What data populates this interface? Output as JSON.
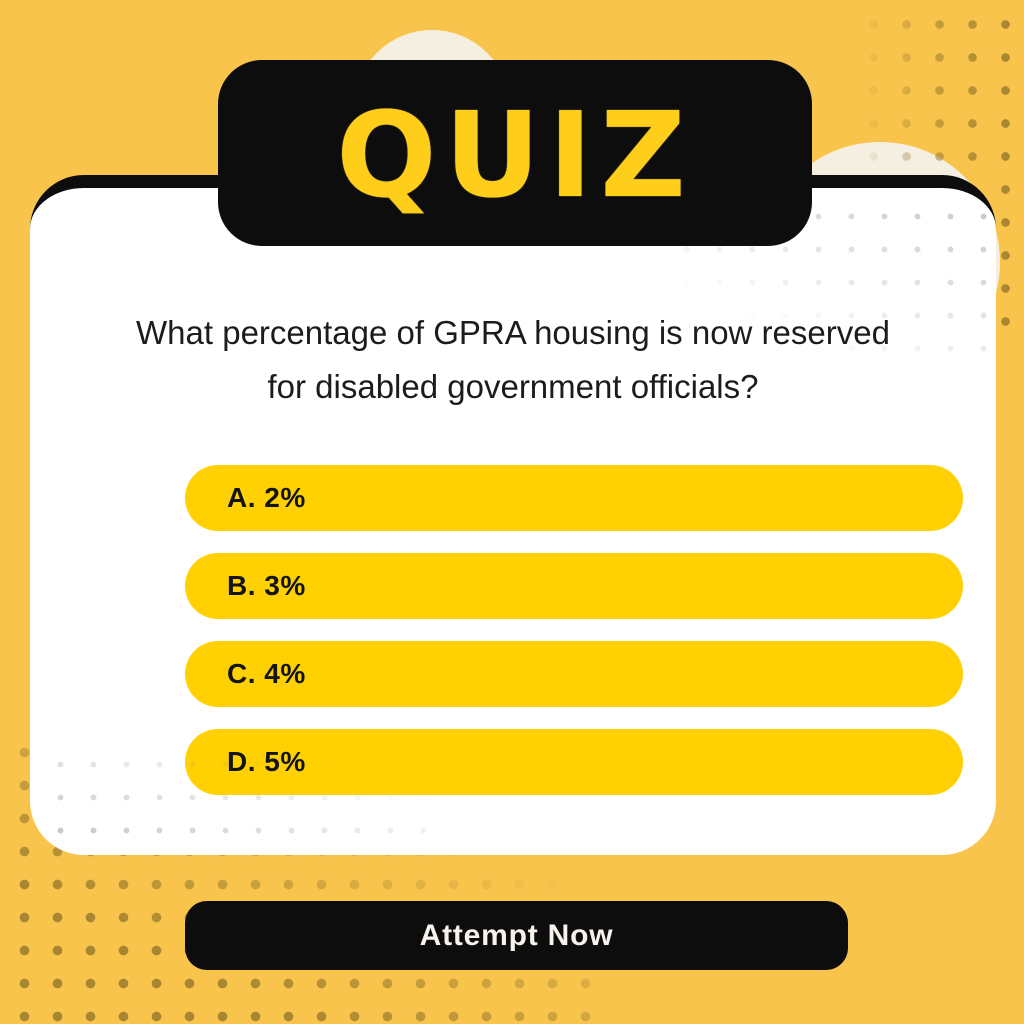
{
  "badge": {
    "label": "QUIZ"
  },
  "question": {
    "line1": "What percentage of GPRA housing is now reserved",
    "line2": "for disabled government officials?"
  },
  "options": [
    {
      "label": "A. 2%"
    },
    {
      "label": "B. 3%"
    },
    {
      "label": "C. 4%"
    },
    {
      "label": "D. 5%"
    }
  ],
  "cta": {
    "label": "Attempt Now"
  },
  "colors": {
    "background": "#F9C44C",
    "option_pill": "#FFD103",
    "badge_background": "#0D0D0D",
    "badge_text": "#FFCE1B",
    "cream_accent": "#F5EFE2",
    "button_background": "#0D0D0D",
    "button_text": "#F7F3EC",
    "question_text": "#1C1C1C"
  }
}
